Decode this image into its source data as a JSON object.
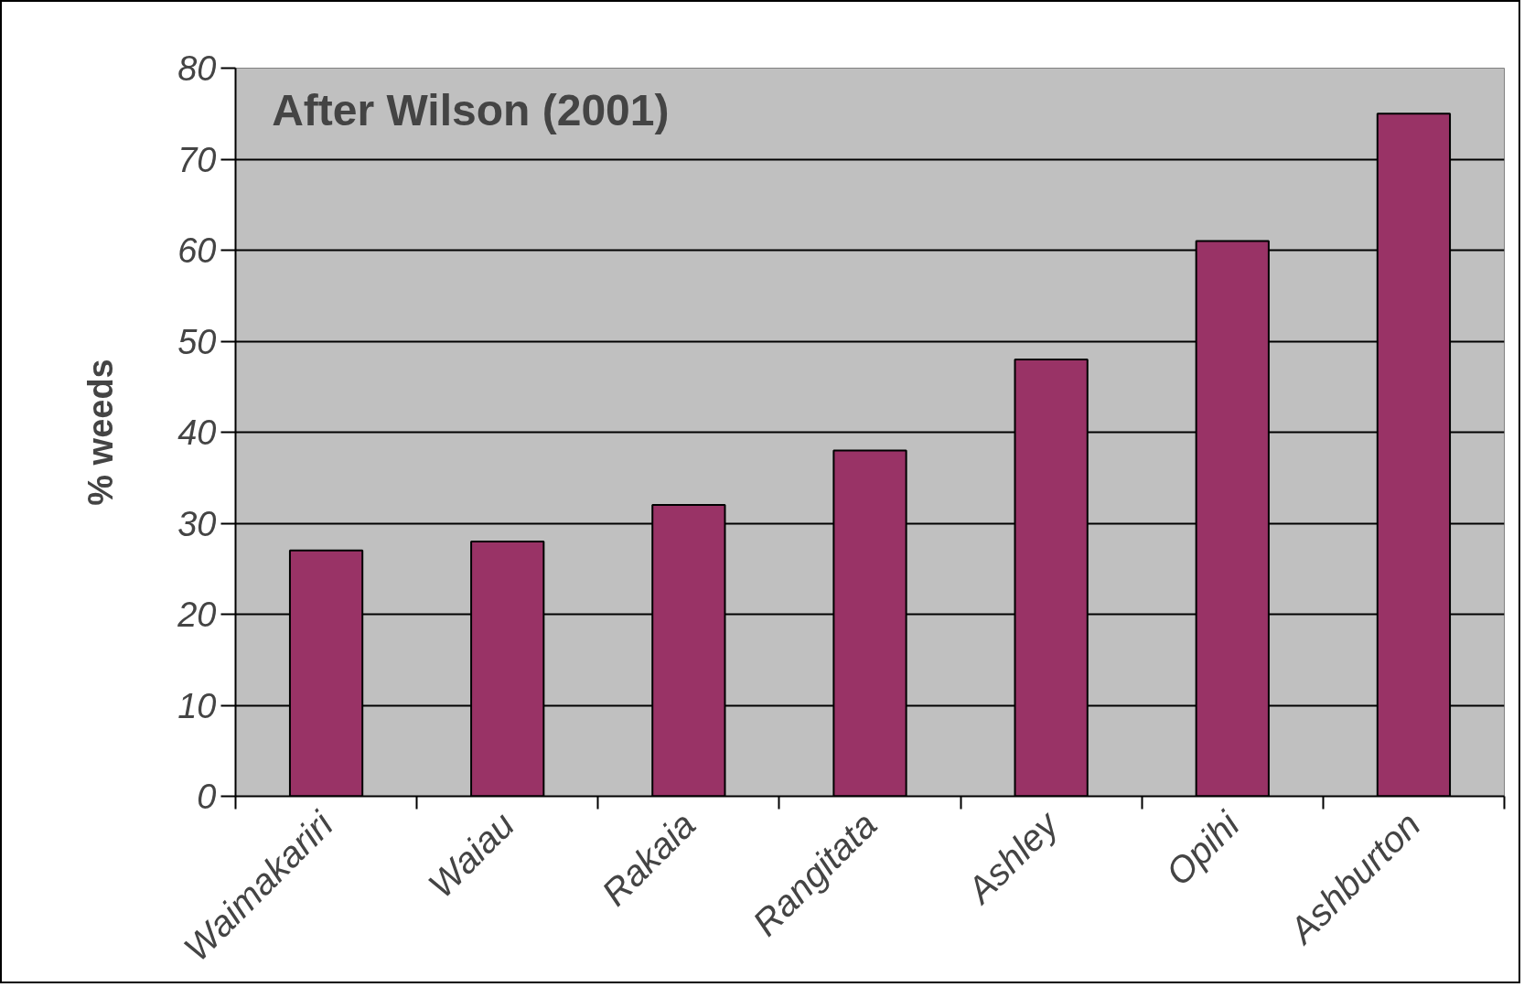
{
  "chart_data": {
    "type": "bar",
    "title": "After Wilson (2001)",
    "ylabel": "% weeds",
    "categories": [
      "Waimakariri",
      "Waiau",
      "Rakaia",
      "Rangitata",
      "Ashley",
      "Opihi",
      "Ashburton"
    ],
    "values": [
      27,
      28,
      32,
      38,
      48,
      61,
      75
    ],
    "color": "#993366",
    "ylim": [
      0,
      80
    ],
    "yticks": [
      0,
      10,
      20,
      30,
      40,
      50,
      60,
      70,
      80
    ],
    "grid": "y"
  }
}
